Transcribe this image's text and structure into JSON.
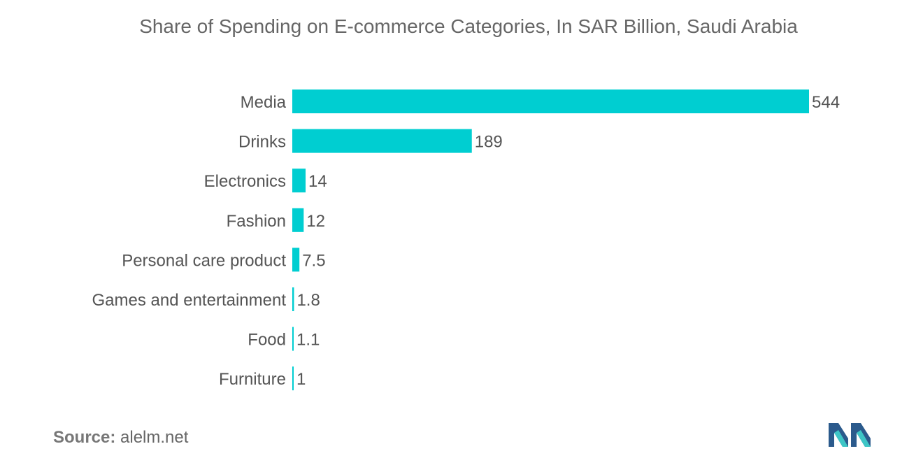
{
  "chart_data": {
    "type": "bar",
    "orientation": "horizontal",
    "title": "Share of Spending on E-commerce Categories, In SAR Billion, Saudi Arabia",
    "categories": [
      "Media",
      "Drinks",
      "Electronics",
      "Fashion",
      "Personal care product",
      "Games and entertainment",
      "Food",
      "Furniture"
    ],
    "values": [
      544,
      189,
      14,
      12,
      7.5,
      1.8,
      1.1,
      1
    ],
    "value_labels": [
      "544",
      "189",
      "14",
      "12",
      "7.5",
      "1.8",
      "1.1",
      "1"
    ],
    "xlim": [
      0,
      544
    ],
    "grid": false,
    "bar_color": "#00CED1"
  },
  "source": {
    "label": "Source:",
    "value": "alelm.net"
  },
  "colors": {
    "bar": "#00CED1",
    "text": "#555555",
    "logo_dark": "#2B5A8C",
    "logo_light": "#3EC6C6"
  }
}
